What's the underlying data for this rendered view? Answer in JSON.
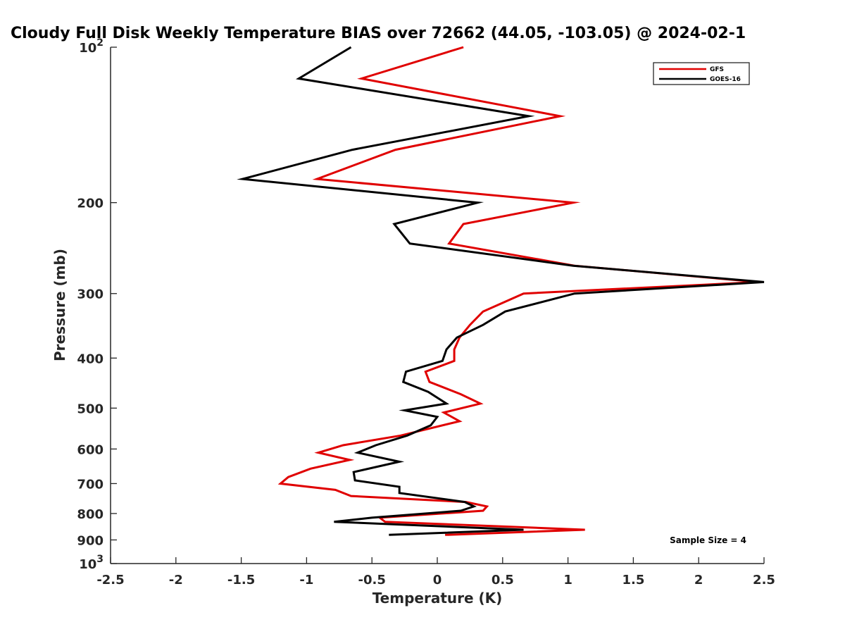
{
  "chart_data": {
    "type": "line",
    "title": "Cloudy Full Disk Weekly Temperature BIAS over 72662 (44.05, -103.05) @ 2024-02-1",
    "xlabel": "Temperature (K)",
    "ylabel": "Pressure (mb)",
    "xlim": [
      -2.5,
      2.5
    ],
    "ylim": [
      100,
      1000
    ],
    "yscale": "log",
    "y_reversed": true,
    "x_ticks": [
      "-2.5",
      "-2",
      "-1.5",
      "-1",
      "-0.5",
      "0",
      "0.5",
      "1",
      "1.5",
      "2",
      "2.5"
    ],
    "y_ticks": [
      {
        "value": 100,
        "base": "10",
        "exp": "2",
        "label": ""
      },
      {
        "value": 200,
        "label": "200"
      },
      {
        "value": 300,
        "label": "300"
      },
      {
        "value": 400,
        "label": "400"
      },
      {
        "value": 500,
        "label": "500"
      },
      {
        "value": 600,
        "label": "600"
      },
      {
        "value": 700,
        "label": "700"
      },
      {
        "value": 800,
        "label": "800"
      },
      {
        "value": 900,
        "label": "900"
      },
      {
        "value": 1000,
        "base": "10",
        "exp": "3",
        "label": ""
      }
    ],
    "legend_position": "top-right",
    "annotation": "Sample Size = 4",
    "series": [
      {
        "name": "GFS",
        "color": "#e00000",
        "points": [
          [
            0.2,
            100
          ],
          [
            -0.58,
            115
          ],
          [
            0.94,
            136
          ],
          [
            -0.32,
            158
          ],
          [
            -0.92,
            180
          ],
          [
            1.04,
            200
          ],
          [
            0.2,
            220
          ],
          [
            0.09,
            240
          ],
          [
            1.05,
            265
          ],
          [
            2.46,
            285
          ],
          [
            0.66,
            300
          ],
          [
            0.35,
            325
          ],
          [
            0.25,
            345
          ],
          [
            0.17,
            365
          ],
          [
            0.13,
            385
          ],
          [
            0.13,
            405
          ],
          [
            -0.09,
            425
          ],
          [
            -0.06,
            445
          ],
          [
            0.18,
            470
          ],
          [
            0.33,
            490
          ],
          [
            0.05,
            510
          ],
          [
            0.17,
            530
          ],
          [
            -0.28,
            565
          ],
          [
            -0.72,
            590
          ],
          [
            -0.91,
            610
          ],
          [
            -0.67,
            630
          ],
          [
            -0.97,
            655
          ],
          [
            -1.14,
            680
          ],
          [
            -1.2,
            700
          ],
          [
            -0.78,
            720
          ],
          [
            -0.66,
            740
          ],
          [
            0.22,
            760
          ],
          [
            0.38,
            775
          ],
          [
            0.35,
            790
          ],
          [
            -0.44,
            815
          ],
          [
            -0.4,
            830
          ],
          [
            1.13,
            860
          ],
          [
            0.06,
            880
          ]
        ]
      },
      {
        "name": "GOES-16",
        "color": "#000000",
        "points": [
          [
            -0.66,
            100
          ],
          [
            -1.06,
            115
          ],
          [
            0.7,
            136
          ],
          [
            -0.65,
            158
          ],
          [
            -1.49,
            180
          ],
          [
            0.31,
            200
          ],
          [
            -0.33,
            220
          ],
          [
            -0.21,
            240
          ],
          [
            1.04,
            265
          ],
          [
            2.5,
            285
          ],
          [
            1.05,
            300
          ],
          [
            0.52,
            325
          ],
          [
            0.35,
            345
          ],
          [
            0.15,
            365
          ],
          [
            0.07,
            385
          ],
          [
            0.04,
            405
          ],
          [
            -0.24,
            425
          ],
          [
            -0.26,
            445
          ],
          [
            -0.07,
            465
          ],
          [
            0.07,
            490
          ],
          [
            -0.25,
            505
          ],
          [
            0.0,
            520
          ],
          [
            -0.05,
            540
          ],
          [
            -0.23,
            565
          ],
          [
            -0.47,
            590
          ],
          [
            -0.61,
            610
          ],
          [
            -0.29,
            635
          ],
          [
            -0.64,
            665
          ],
          [
            -0.63,
            690
          ],
          [
            -0.29,
            710
          ],
          [
            -0.29,
            730
          ],
          [
            0.21,
            760
          ],
          [
            0.28,
            775
          ],
          [
            0.18,
            790
          ],
          [
            -0.5,
            815
          ],
          [
            -0.79,
            830
          ],
          [
            0.66,
            860
          ],
          [
            -0.37,
            880
          ]
        ]
      }
    ]
  }
}
